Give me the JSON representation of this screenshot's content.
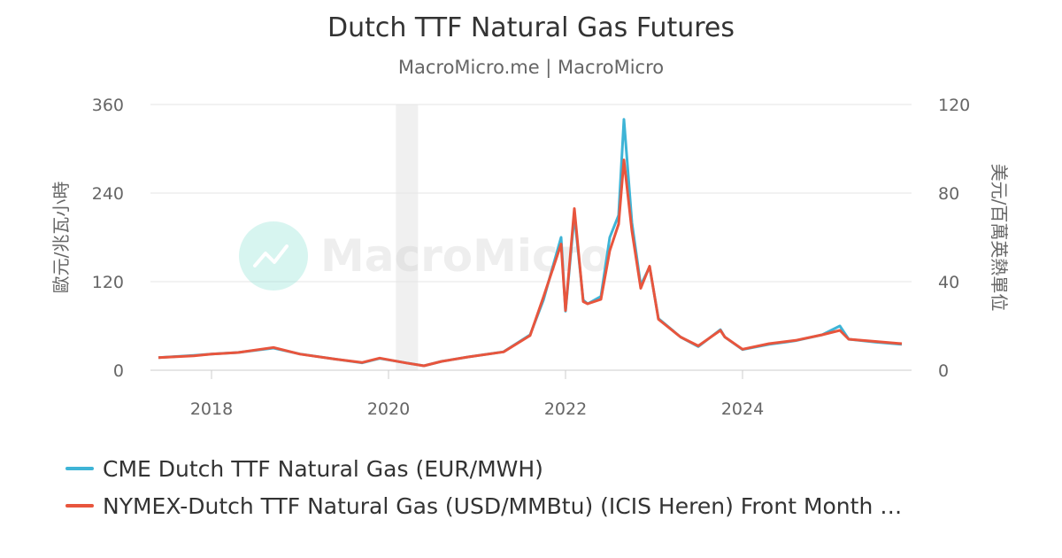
{
  "header": {
    "title": "Dutch TTF Natural Gas Futures",
    "subtitle": "MacroMicro.me | MacroMicro"
  },
  "watermark": {
    "text": "MacroMicro"
  },
  "colors": {
    "cme": "#3eb4d6",
    "nymex": "#e8553d",
    "grid": "#e6e6e6",
    "shade": "#f0f0f0",
    "axis_text": "#666666"
  },
  "legend": {
    "items": [
      {
        "label": "CME Dutch TTF Natural Gas (EUR/MWH)",
        "color": "#3eb4d6"
      },
      {
        "label": "NYMEX-Dutch TTF Natural Gas (USD/MMBtu) (ICIS Heren) Front Month …",
        "color": "#e8553d"
      }
    ]
  },
  "chart_data": {
    "type": "line",
    "title": "Dutch TTF Natural Gas Futures",
    "subtitle": "MacroMicro.me | MacroMicro",
    "xlabel": "",
    "x_ticks": [
      "2018",
      "2020",
      "2022",
      "2024"
    ],
    "y_left": {
      "label": "歐元/兆瓦小時",
      "ticks": [
        0,
        120,
        240,
        360
      ],
      "ylim": [
        0,
        360
      ]
    },
    "y_right": {
      "label": "美元/百萬英熱單位",
      "ticks": [
        0,
        40,
        80,
        120
      ],
      "ylim": [
        0,
        120
      ]
    },
    "grid": true,
    "legend_position": "bottom",
    "shaded_region": {
      "start": "2020-02",
      "end": "2020-05"
    },
    "x": [
      2017.4,
      2017.8,
      2018.0,
      2018.3,
      2018.7,
      2019.0,
      2019.4,
      2019.7,
      2019.9,
      2020.2,
      2020.4,
      2020.6,
      2020.9,
      2021.3,
      2021.6,
      2021.75,
      2021.95,
      2022.0,
      2022.1,
      2022.2,
      2022.25,
      2022.4,
      2022.5,
      2022.6,
      2022.66,
      2022.75,
      2022.85,
      2022.95,
      2023.05,
      2023.3,
      2023.5,
      2023.75,
      2023.8,
      2024.0,
      2024.3,
      2024.6,
      2024.9,
      2025.1,
      2025.2,
      2025.5,
      2025.8
    ],
    "series": [
      {
        "name": "CME Dutch TTF Natural Gas (EUR/MWH)",
        "axis": "left",
        "values": [
          17,
          20,
          22,
          24,
          30,
          22,
          15,
          10,
          16,
          10,
          6,
          12,
          18,
          25,
          48,
          95,
          180,
          80,
          210,
          95,
          90,
          100,
          180,
          210,
          340,
          200,
          115,
          140,
          70,
          45,
          32,
          55,
          45,
          28,
          35,
          40,
          48,
          60,
          42,
          38,
          35
        ]
      },
      {
        "name": "NYMEX-Dutch TTF Natural Gas (USD/MMBtu) (ICIS Heren) Front Month",
        "axis": "right",
        "values": [
          5.7,
          6.5,
          7.3,
          8,
          10.3,
          7.3,
          5,
          3.5,
          5.5,
          3.3,
          2,
          4,
          6,
          8.3,
          15.7,
          33,
          57,
          27,
          73,
          31,
          30,
          32,
          54,
          66,
          95,
          63,
          37,
          47,
          23,
          15,
          11,
          18,
          15,
          9.5,
          12,
          13.5,
          16,
          18,
          14,
          13,
          12
        ]
      }
    ]
  }
}
